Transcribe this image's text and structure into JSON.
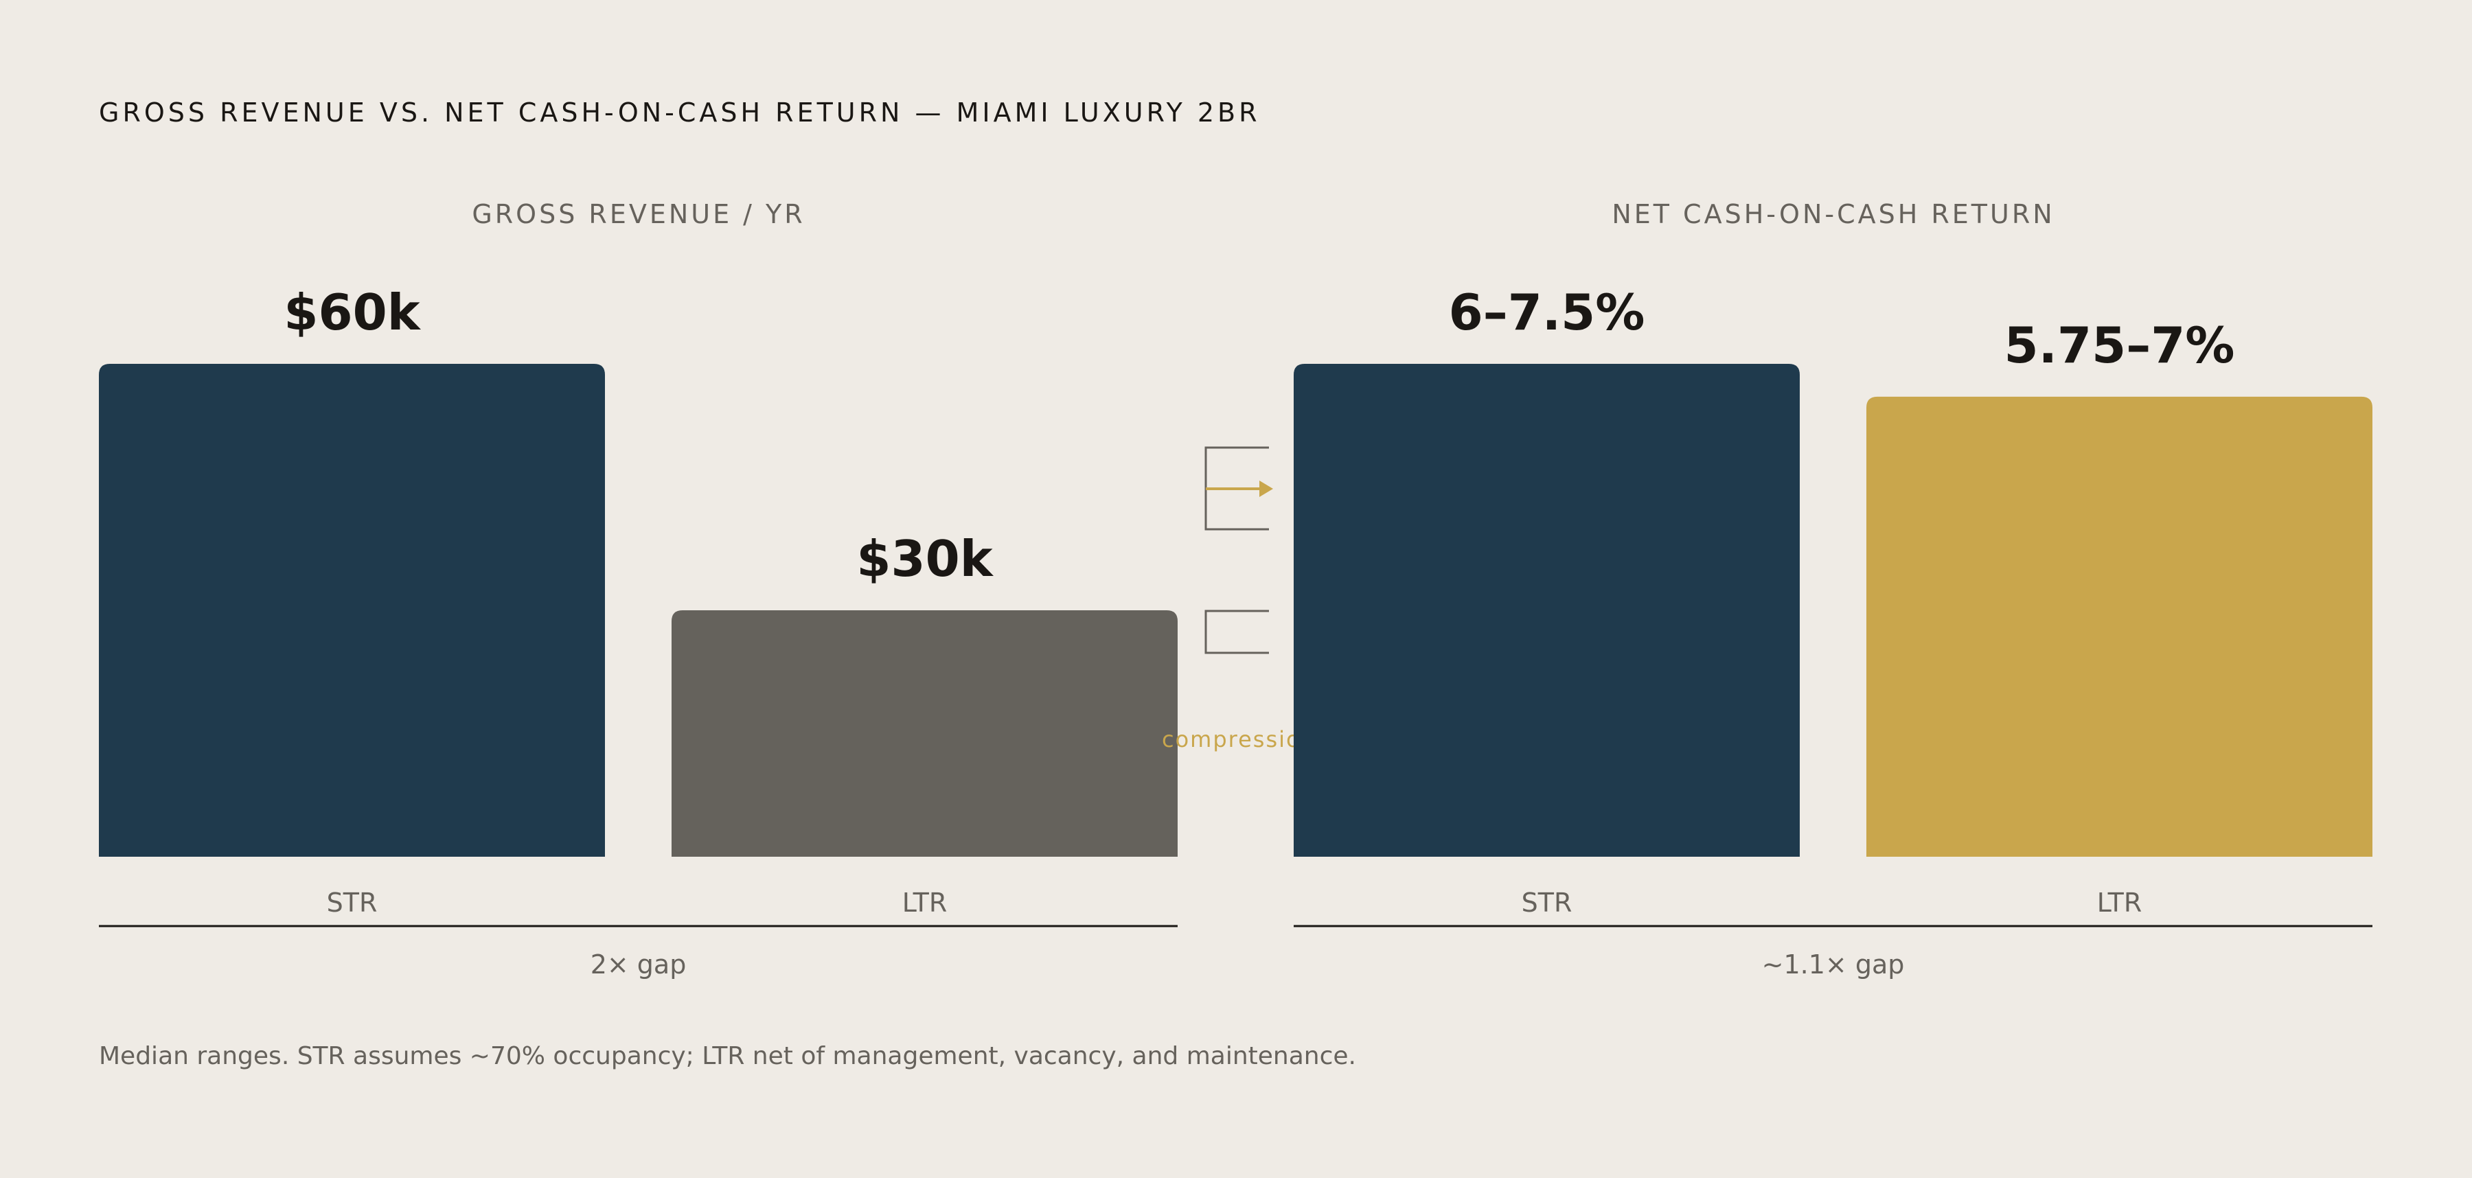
{
  "title": "GROSS REVENUE VS. NET CASH-ON-CASH RETURN — MIAMI LUXURY 2BR",
  "footnote": "Median ranges. STR assumes ~70% occupancy; LTR net of management, vacancy, and maintenance.",
  "annotation": {
    "label": "compression"
  },
  "colors": {
    "str": "#1f3a4d",
    "ltr_gross": "#65625c",
    "ltr_net": "#c9a64c",
    "axis": "#1a1714",
    "accent": "#c9a64c",
    "bracket": "#66625c"
  },
  "chart_data": [
    {
      "type": "bar",
      "title": "GROSS REVENUE / YR",
      "categories": [
        "STR",
        "LTR"
      ],
      "values": [
        60,
        30
      ],
      "unit": "$k",
      "value_labels": [
        "$60k",
        "$30k"
      ],
      "gap_label": "2× gap",
      "ylim": [
        0,
        60
      ],
      "grid": false
    },
    {
      "type": "bar",
      "title": "NET CASH-ON-CASH RETURN",
      "categories": [
        "STR",
        "LTR"
      ],
      "values": [
        7.5,
        7.0
      ],
      "ranges": [
        [
          6,
          7.5
        ],
        [
          5.75,
          7
        ]
      ],
      "unit": "%",
      "value_labels": [
        "6–7.5%",
        "5.75–7%"
      ],
      "gap_label": "~1.1× gap",
      "ylim": [
        0,
        7.5
      ],
      "grid": false
    }
  ]
}
